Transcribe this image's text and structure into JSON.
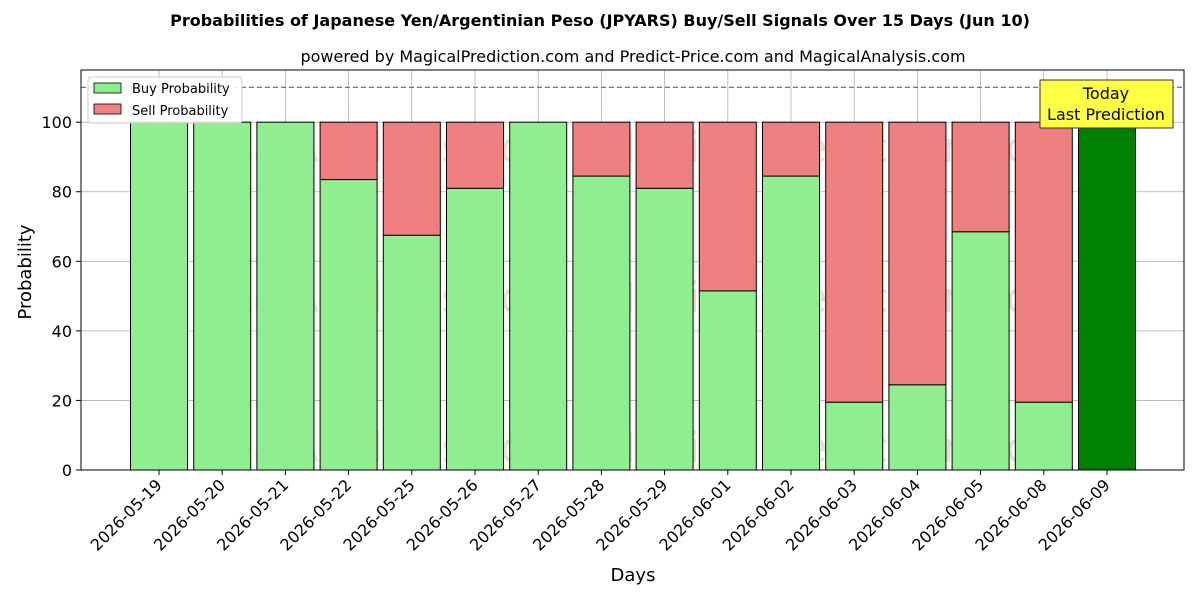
{
  "chart_data": {
    "type": "bar",
    "stacked": true,
    "title": "Probabilities of Japanese Yen/Argentinian Peso (JPYARS) Buy/Sell Signals Over 15 Days (Jun 10)",
    "subtitle": "powered by MagicalPrediction.com and Predict-Price.com and MagicalAnalysis.com",
    "xlabel": "Days",
    "ylabel": "Probability",
    "ylim": [
      0,
      115
    ],
    "yticks": [
      0,
      20,
      40,
      60,
      80,
      100
    ],
    "grid": true,
    "legend_position": "top-left",
    "reference_line": 110,
    "categories": [
      "2026-05-19",
      "2026-05-20",
      "2026-05-21",
      "2026-05-22",
      "2026-05-25",
      "2026-05-26",
      "2026-05-27",
      "2026-05-28",
      "2026-05-29",
      "2026-06-01",
      "2026-06-02",
      "2026-06-03",
      "2026-06-04",
      "2026-06-05",
      "2026-06-08",
      "2026-06-09"
    ],
    "series": [
      {
        "name": "Buy Probability",
        "color": "#90ee90",
        "values": [
          100,
          100,
          100,
          83.5,
          67.5,
          81,
          100,
          84.5,
          81,
          51.5,
          84.5,
          19.5,
          24.5,
          68.5,
          19.5,
          100
        ]
      },
      {
        "name": "Sell Probability",
        "color": "#f08080",
        "values": [
          0,
          0,
          0,
          16.5,
          32.5,
          19,
          0,
          15.5,
          19,
          48.5,
          15.5,
          80.5,
          75.5,
          31.5,
          80.5,
          0
        ]
      }
    ],
    "highlight": {
      "index": 15,
      "color": "#008000"
    },
    "annotation": {
      "line1": "Today",
      "line2": "Last Prediction",
      "background": "#ffff44"
    },
    "watermarks": [
      "MagicalAnalysis.com",
      "MagicalPrediction.com"
    ]
  }
}
